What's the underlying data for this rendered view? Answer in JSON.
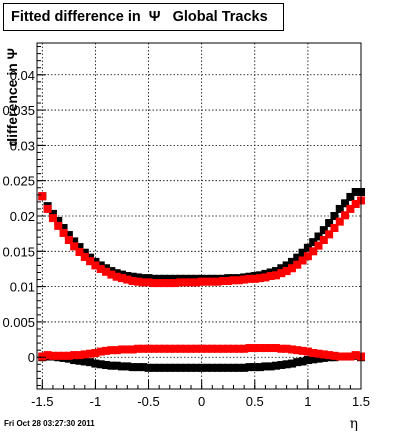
{
  "chart_data": {
    "title": "Fitted difference in  Ψ   Global Tracks",
    "xlabel": "η",
    "ylabel": "difference in Ψ",
    "type": "scatter",
    "xlim": [
      -1.55,
      1.5
    ],
    "ylim": [
      -0.0045,
      0.0445
    ],
    "xticks": [
      -1.5,
      -1,
      -0.5,
      0,
      0.5,
      1,
      1.5
    ],
    "xtick_labels": [
      "-1.5",
      "-1",
      "-0.5",
      "0",
      "0.5",
      "1",
      "1.5"
    ],
    "yticks": [
      0,
      0.005,
      0.01,
      0.015,
      0.02,
      0.025,
      0.03,
      0.035,
      0.04
    ],
    "ytick_labels": [
      "0",
      "0.005",
      "0.01",
      "0.015",
      "0.02",
      "0.025",
      "0.03",
      "0.035",
      "0.04"
    ],
    "grid": true,
    "legend": "none",
    "marker": "square",
    "series": [
      {
        "color": "#000000",
        "x": [
          -1.5,
          -1.45,
          -1.4,
          -1.35,
          -1.3,
          -1.25,
          -1.2,
          -1.15,
          -1.1,
          -1.05,
          -1.0,
          -0.95,
          -0.9,
          -0.85,
          -0.8,
          -0.75,
          -0.7,
          -0.65,
          -0.6,
          -0.55,
          -0.5,
          -0.45,
          -0.4,
          -0.35,
          -0.3,
          -0.25,
          -0.2,
          -0.15,
          -0.1,
          -0.05,
          0.0,
          0.05,
          0.1,
          0.15,
          0.2,
          0.25,
          0.3,
          0.35,
          0.4,
          0.45,
          0.5,
          0.55,
          0.6,
          0.65,
          0.7,
          0.75,
          0.8,
          0.85,
          0.9,
          0.95,
          1.0,
          1.05,
          1.1,
          1.15,
          1.2,
          1.25,
          1.3,
          1.35,
          1.4,
          1.45,
          1.5
        ],
        "y": [
          0.0228,
          0.0214,
          0.0203,
          0.0193,
          0.0183,
          0.0173,
          0.0164,
          0.0156,
          0.0148,
          0.0141,
          0.0135,
          0.013,
          0.0126,
          0.0122,
          0.0119,
          0.0117,
          0.0115,
          0.0114,
          0.0113,
          0.0112,
          0.0112,
          0.0111,
          0.0111,
          0.0111,
          0.0111,
          0.0111,
          0.0111,
          0.0111,
          0.0111,
          0.0111,
          0.0111,
          0.0111,
          0.0111,
          0.0111,
          0.0111,
          0.0112,
          0.0112,
          0.0112,
          0.0113,
          0.0114,
          0.0115,
          0.0116,
          0.0118,
          0.012,
          0.0122,
          0.0126,
          0.013,
          0.0135,
          0.0141,
          0.0148,
          0.0155,
          0.0163,
          0.0171,
          0.018,
          0.019,
          0.02,
          0.021,
          0.0218,
          0.0227,
          0.0234,
          0.0234
        ]
      },
      {
        "color": "#000000",
        "x": [
          -1.5,
          -1.45,
          -1.4,
          -1.35,
          -1.3,
          -1.25,
          -1.2,
          -1.15,
          -1.1,
          -1.05,
          -1.0,
          -0.95,
          -0.9,
          -0.85,
          -0.8,
          -0.75,
          -0.7,
          -0.65,
          -0.6,
          -0.55,
          -0.5,
          -0.45,
          -0.4,
          -0.35,
          -0.3,
          -0.25,
          -0.2,
          -0.15,
          -0.1,
          -0.05,
          0.0,
          0.05,
          0.1,
          0.15,
          0.2,
          0.25,
          0.3,
          0.35,
          0.4,
          0.45,
          0.5,
          0.55,
          0.6,
          0.65,
          0.7,
          0.75,
          0.8,
          0.85,
          0.9,
          0.95,
          1.0,
          1.05,
          1.1,
          1.15,
          1.2,
          1.25,
          1.3,
          1.35,
          1.4,
          1.45,
          1.5
        ],
        "y": [
          0.0,
          0.0001,
          0.0001,
          0.0,
          -0.0001,
          -0.0002,
          -0.0004,
          -0.0005,
          -0.0006,
          -0.0007,
          -0.0009,
          -0.001,
          -0.0011,
          -0.0012,
          -0.0012,
          -0.0013,
          -0.0013,
          -0.0014,
          -0.0014,
          -0.0014,
          -0.0015,
          -0.0015,
          -0.0015,
          -0.0015,
          -0.0015,
          -0.0015,
          -0.0015,
          -0.0015,
          -0.0015,
          -0.0015,
          -0.0015,
          -0.0015,
          -0.0015,
          -0.0015,
          -0.0015,
          -0.0015,
          -0.0015,
          -0.0015,
          -0.0015,
          -0.0014,
          -0.0014,
          -0.0014,
          -0.0013,
          -0.0013,
          -0.0012,
          -0.0011,
          -0.001,
          -0.0009,
          -0.0007,
          -0.0006,
          -0.0004,
          -0.0003,
          -0.0002,
          -0.0001,
          0.0,
          0.0,
          0.0001,
          0.0001,
          0.0001,
          0.0002,
          0.0
        ]
      },
      {
        "color": "#ff0000",
        "x": [
          -1.5,
          -1.45,
          -1.4,
          -1.35,
          -1.3,
          -1.25,
          -1.2,
          -1.15,
          -1.1,
          -1.05,
          -1.0,
          -0.95,
          -0.9,
          -0.85,
          -0.8,
          -0.75,
          -0.7,
          -0.65,
          -0.6,
          -0.55,
          -0.5,
          -0.45,
          -0.4,
          -0.35,
          -0.3,
          -0.25,
          -0.2,
          -0.15,
          -0.1,
          -0.05,
          0.0,
          0.05,
          0.1,
          0.15,
          0.2,
          0.25,
          0.3,
          0.35,
          0.4,
          0.45,
          0.5,
          0.55,
          0.6,
          0.65,
          0.7,
          0.75,
          0.8,
          0.85,
          0.9,
          0.95,
          1.0,
          1.05,
          1.1,
          1.15,
          1.2,
          1.25,
          1.3,
          1.35,
          1.4,
          1.45,
          1.5
        ],
        "y": [
          0.0228,
          0.021,
          0.0197,
          0.0186,
          0.0176,
          0.0166,
          0.0157,
          0.0149,
          0.0142,
          0.0136,
          0.013,
          0.0125,
          0.0121,
          0.0117,
          0.0114,
          0.0112,
          0.011,
          0.0108,
          0.0107,
          0.0106,
          0.0106,
          0.0105,
          0.0105,
          0.0105,
          0.0105,
          0.0105,
          0.0106,
          0.0106,
          0.0106,
          0.0106,
          0.0107,
          0.0107,
          0.0107,
          0.0107,
          0.0108,
          0.0108,
          0.0109,
          0.0109,
          0.011,
          0.0111,
          0.0111,
          0.0112,
          0.0113,
          0.0115,
          0.0116,
          0.0119,
          0.0122,
          0.0126,
          0.0131,
          0.0137,
          0.0143,
          0.015,
          0.0158,
          0.0166,
          0.0174,
          0.0183,
          0.0192,
          0.0201,
          0.021,
          0.0217,
          0.0222
        ]
      },
      {
        "color": "#ff0000",
        "x": [
          -1.5,
          -1.45,
          -1.4,
          -1.35,
          -1.3,
          -1.25,
          -1.2,
          -1.15,
          -1.1,
          -1.05,
          -1.0,
          -0.95,
          -0.9,
          -0.85,
          -0.8,
          -0.75,
          -0.7,
          -0.65,
          -0.6,
          -0.55,
          -0.5,
          -0.45,
          -0.4,
          -0.35,
          -0.3,
          -0.25,
          -0.2,
          -0.15,
          -0.1,
          -0.05,
          0.0,
          0.05,
          0.1,
          0.15,
          0.2,
          0.25,
          0.3,
          0.35,
          0.4,
          0.45,
          0.5,
          0.55,
          0.6,
          0.65,
          0.7,
          0.75,
          0.8,
          0.85,
          0.9,
          0.95,
          1.0,
          1.05,
          1.1,
          1.15,
          1.2,
          1.25,
          1.3,
          1.35,
          1.4,
          1.45,
          1.5
        ],
        "y": [
          0.0001,
          0.0003,
          0.0002,
          0.0002,
          0.0002,
          0.0002,
          0.0003,
          0.0003,
          0.0004,
          0.0005,
          0.0006,
          0.0008,
          0.0009,
          0.001,
          0.001,
          0.0011,
          0.0011,
          0.0011,
          0.0012,
          0.0012,
          0.0012,
          0.0012,
          0.0012,
          0.0012,
          0.0012,
          0.0012,
          0.0012,
          0.0012,
          0.0012,
          0.0012,
          0.0012,
          0.0012,
          0.0012,
          0.0012,
          0.0012,
          0.0012,
          0.0012,
          0.0012,
          0.0012,
          0.0013,
          0.0013,
          0.0013,
          0.0013,
          0.0013,
          0.0013,
          0.0012,
          0.0012,
          0.0011,
          0.001,
          0.0009,
          0.0008,
          0.0006,
          0.0005,
          0.0004,
          0.0003,
          0.0002,
          0.0001,
          0.0001,
          0.0001,
          0.0003,
          0.0001
        ]
      }
    ]
  },
  "footer": {
    "timestamp": "Fri Oct 28 03:27:30 2011"
  }
}
